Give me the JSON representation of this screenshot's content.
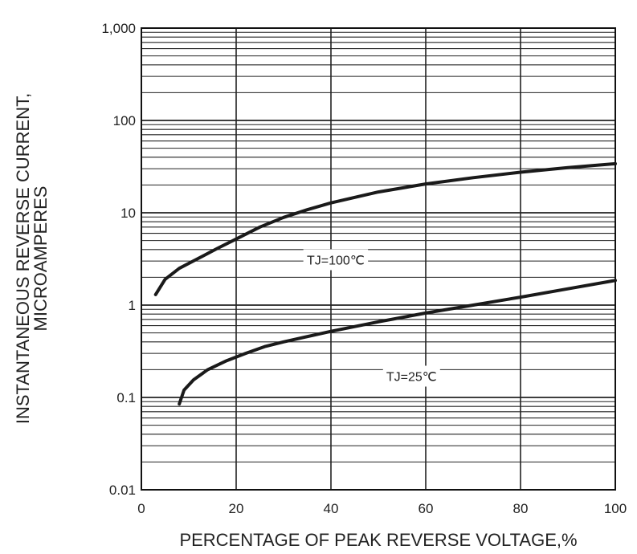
{
  "chart_data": {
    "type": "line",
    "xlabel": "PERCENTAGE OF PEAK REVERSE VOLTAGE,%",
    "ylabel_line1": "INSTANTANEOUS REVERSE CURRENT,",
    "ylabel_line2": "MICROAMPERES",
    "y_scale": "log",
    "xlim": [
      0,
      100
    ],
    "ylim": [
      0.01,
      1000
    ],
    "x_ticks": [
      {
        "value": 0,
        "label": "0"
      },
      {
        "value": 20,
        "label": "20"
      },
      {
        "value": 40,
        "label": "40"
      },
      {
        "value": 60,
        "label": "60"
      },
      {
        "value": 80,
        "label": "80"
      },
      {
        "value": 100,
        "label": "100"
      }
    ],
    "y_ticks": [
      {
        "value": 0.01,
        "label": "0.01"
      },
      {
        "value": 0.1,
        "label": "0.1"
      },
      {
        "value": 1,
        "label": "1"
      },
      {
        "value": 10,
        "label": "10"
      },
      {
        "value": 100,
        "label": "100"
      },
      {
        "value": 1000,
        "label": "1,000"
      }
    ],
    "grid": true,
    "series": [
      {
        "name": "TJ=100℃",
        "label_at": {
          "x": 41,
          "y": 3.1
        },
        "x": [
          3,
          5,
          8,
          12,
          16,
          20,
          25,
          30,
          35,
          40,
          50,
          60,
          70,
          80,
          90,
          100
        ],
        "values": [
          1.3,
          1.9,
          2.5,
          3.2,
          4.1,
          5.2,
          7.0,
          8.9,
          10.8,
          12.8,
          16.8,
          20.5,
          24.0,
          27.5,
          30.8,
          34.0
        ]
      },
      {
        "name": "TJ=25℃",
        "label_at": {
          "x": 57,
          "y": 0.17
        },
        "x": [
          8,
          9,
          11,
          14,
          18,
          22,
          26,
          30,
          40,
          50,
          60,
          70,
          80,
          90,
          100
        ],
        "values": [
          0.085,
          0.12,
          0.155,
          0.2,
          0.25,
          0.3,
          0.355,
          0.4,
          0.52,
          0.66,
          0.82,
          1.0,
          1.22,
          1.5,
          1.85
        ]
      }
    ]
  }
}
